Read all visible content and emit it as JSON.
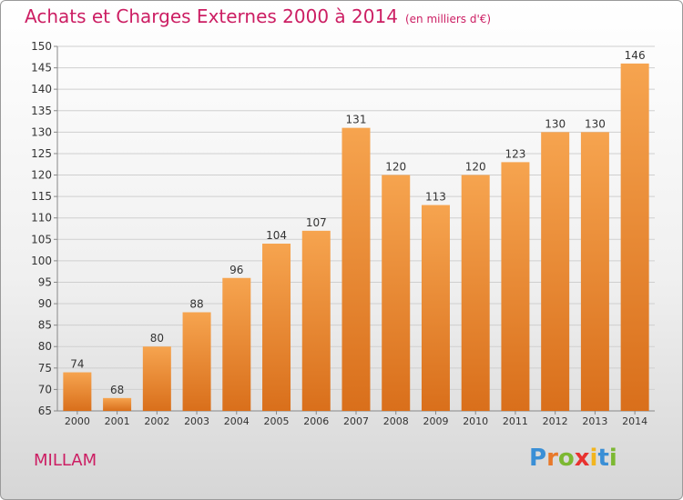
{
  "header": {
    "title": "Achats et Charges Externes 2000 à 2014",
    "unit": "(en milliers d'€)"
  },
  "commune": "MILLAM",
  "logo": {
    "text": "Proxiti",
    "letter_colors": [
      "#3a8fd6",
      "#e8792a",
      "#7cb832",
      "#e8322f",
      "#f2b51e",
      "#3a8fd6",
      "#7cb832"
    ]
  },
  "colors": {
    "bar_light": "#f6a44f",
    "bar_dark": "#d96f1b",
    "grid": "#cfcfcf",
    "axis_text": "#333333",
    "accent": "#cc1e63"
  },
  "chart_data": {
    "type": "bar",
    "title": "Achats et Charges Externes 2000 à 2014",
    "categories": [
      "2000",
      "2001",
      "2002",
      "2003",
      "2004",
      "2005",
      "2006",
      "2007",
      "2008",
      "2009",
      "2010",
      "2011",
      "2012",
      "2013",
      "2014"
    ],
    "values": [
      74,
      68,
      80,
      88,
      96,
      104,
      107,
      131,
      120,
      113,
      120,
      123,
      130,
      130,
      146
    ],
    "ylim": [
      65,
      150
    ],
    "yticks": [
      65,
      70,
      75,
      80,
      85,
      90,
      95,
      100,
      105,
      110,
      115,
      120,
      125,
      130,
      135,
      140,
      145,
      150
    ],
    "grid": true,
    "data_labels": true
  }
}
